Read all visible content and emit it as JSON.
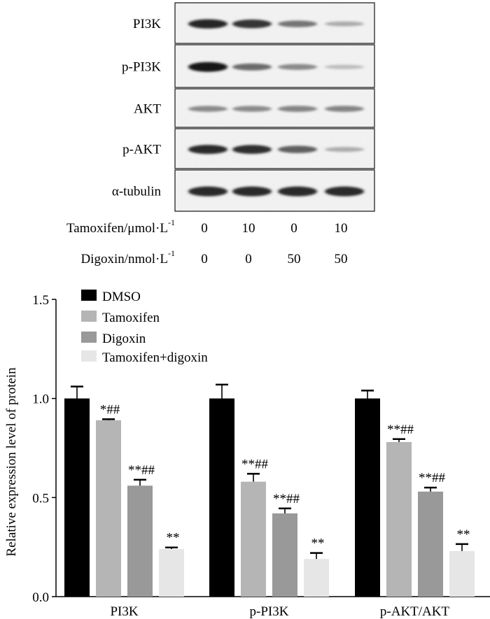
{
  "blot": {
    "rows": [
      {
        "label": "PI3K",
        "intensity": [
          0.92,
          0.85,
          0.55,
          0.3
        ]
      },
      {
        "label": "p-PI3K",
        "intensity": [
          1.0,
          0.6,
          0.45,
          0.22
        ]
      },
      {
        "label": "AKT",
        "intensity": [
          0.45,
          0.45,
          0.48,
          0.48
        ]
      },
      {
        "label": "p-AKT",
        "intensity": [
          0.9,
          0.88,
          0.65,
          0.3
        ]
      },
      {
        "label": "α-tubulin",
        "intensity": [
          0.9,
          0.9,
          0.9,
          0.9
        ]
      }
    ],
    "conditions": [
      {
        "label": "Tamoxifen/μmol·L",
        "sup": "-1",
        "values": [
          "0",
          "10",
          "0",
          "10"
        ]
      },
      {
        "label": "Digoxin/nmol·L",
        "sup": "-1",
        "values": [
          "0",
          "0",
          "50",
          "50"
        ]
      }
    ]
  },
  "chart_data": {
    "type": "bar",
    "ylabel": "Relative expression level of protein",
    "ylim": [
      0,
      1.5
    ],
    "yticks": [
      "0.0",
      "0.5",
      "1.0",
      "1.5"
    ],
    "categories": [
      "PI3K",
      "p-PI3K",
      "p-AKT/AKT"
    ],
    "series": [
      {
        "name": "DMSO",
        "color": "#000000",
        "values": [
          1.0,
          1.0,
          1.0
        ],
        "errors": [
          0.06,
          0.07,
          0.04
        ],
        "annotations": [
          "",
          "",
          ""
        ]
      },
      {
        "name": "Tamoxifen",
        "color": "#b5b5b5",
        "values": [
          0.89,
          0.58,
          0.78
        ],
        "errors": [
          0.005,
          0.04,
          0.015
        ],
        "annotations": [
          "*##",
          "**##",
          "**##"
        ]
      },
      {
        "name": "Digoxin",
        "color": "#999999",
        "values": [
          0.56,
          0.42,
          0.53
        ],
        "errors": [
          0.03,
          0.025,
          0.02
        ],
        "annotations": [
          "**##",
          "**##",
          "**##"
        ]
      },
      {
        "name": "Tamoxifen+digoxin",
        "color": "#e6e6e6",
        "values": [
          0.24,
          0.19,
          0.23
        ],
        "errors": [
          0.008,
          0.03,
          0.035
        ],
        "annotations": [
          "**",
          "**",
          "**"
        ]
      }
    ],
    "legend_position": "top-left"
  }
}
